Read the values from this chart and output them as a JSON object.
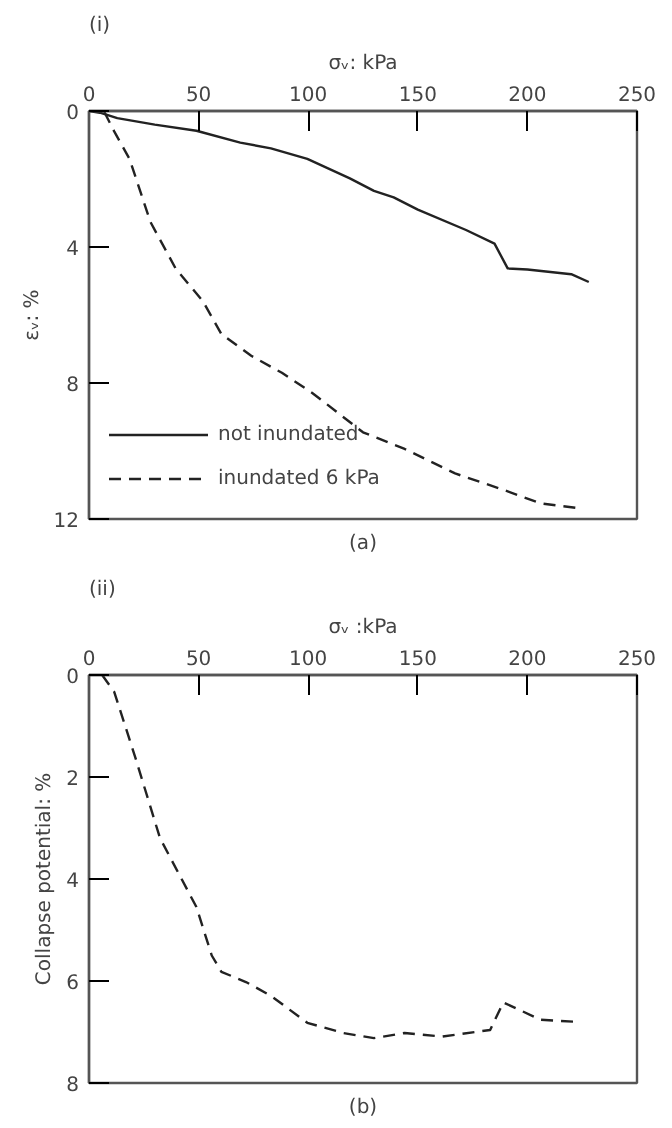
{
  "chart_data": [
    {
      "type": "line",
      "title": "(i)",
      "xlabel": "σᵥ: kPa",
      "ylabel": "εᵥ: %",
      "annotations": [
        "(a)"
      ],
      "xlim": [
        0,
        250
      ],
      "xticks": [
        0,
        50,
        100,
        150,
        200,
        250
      ],
      "ylim": [
        12,
        0
      ],
      "yticks": [
        0,
        4,
        8,
        12
      ],
      "grid": false,
      "legend": "bottom left",
      "marker": "none",
      "series": [
        {
          "name": "not inundated",
          "color": "#222222",
          "line_style": "solid",
          "x": [
            0,
            5,
            12.9,
            30,
            49,
            69,
            83,
            99.6,
            119,
            130,
            139,
            150,
            172,
            185,
            191,
            200,
            220,
            228
          ],
          "values": [
            0,
            0.05,
            0.21,
            0.4,
            0.58,
            0.93,
            1.1,
            1.41,
            1.98,
            2.35,
            2.54,
            2.9,
            3.5,
            3.9,
            4.63,
            4.66,
            4.8,
            5.03
          ]
        },
        {
          "name": "inundated 6 kPa",
          "color": "#222222",
          "line_style": "dashed",
          "x": [
            7,
            11.5,
            18.5,
            28,
            39.5,
            52,
            60.4,
            74,
            88,
            102,
            125,
            144,
            167,
            189,
            206,
            222
          ],
          "values": [
            0.03,
            0.6,
            1.41,
            3.26,
            4.63,
            5.6,
            6.56,
            7.2,
            7.7,
            8.3,
            9.45,
            9.94,
            10.66,
            11.14,
            11.54,
            11.67
          ]
        }
      ]
    },
    {
      "type": "line",
      "title": "(ii)",
      "xlabel": "σᵥ :kPa",
      "ylabel": "Collapse potential: %",
      "annotations": [
        "(b)"
      ],
      "xlim": [
        0,
        250
      ],
      "xticks": [
        0,
        50,
        100,
        150,
        200,
        250
      ],
      "ylim": [
        8,
        0
      ],
      "yticks": [
        0,
        2,
        4,
        6,
        8
      ],
      "grid": false,
      "legend": false,
      "marker": "none",
      "series": [
        {
          "color": "#222222",
          "line_style": "dashed",
          "x": [
            6,
            11.5,
            21,
            32.4,
            49,
            56,
            60.4,
            71.6,
            83,
            99.6,
            116,
            130,
            144,
            161,
            183,
            189,
            206,
            222
          ],
          "values": [
            0,
            0.33,
            1.6,
            3.2,
            4.55,
            5.5,
            5.82,
            6.02,
            6.29,
            6.82,
            7.02,
            7.12,
            7.02,
            7.09,
            6.96,
            6.42,
            6.76,
            6.8
          ]
        }
      ]
    }
  ]
}
